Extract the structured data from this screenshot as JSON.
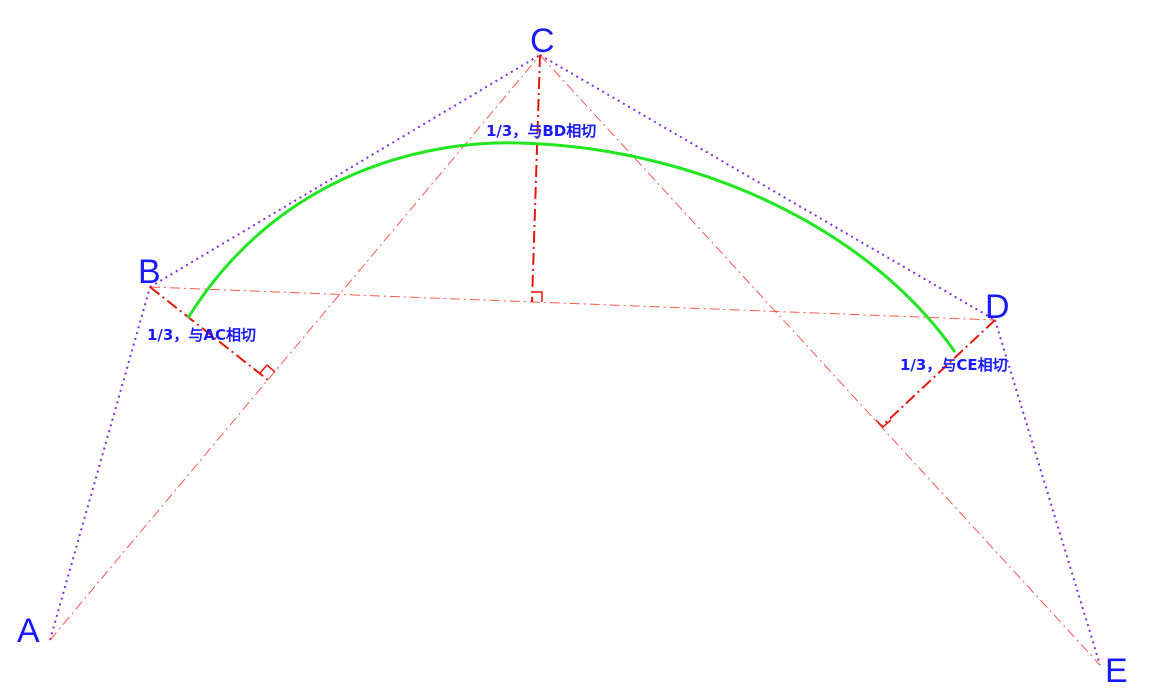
{
  "points": {
    "A": "A",
    "B": "B",
    "C": "C",
    "D": "D",
    "E": "E"
  },
  "annotations": {
    "left": "1/3，与AC相切",
    "top": "1/3，与BD相切",
    "right": "1/3，与CE相切"
  },
  "colors": {
    "polyline": "#8a2be2",
    "construction": "#ff3b30",
    "curve": "#22e622",
    "text": "#1a1aff"
  }
}
